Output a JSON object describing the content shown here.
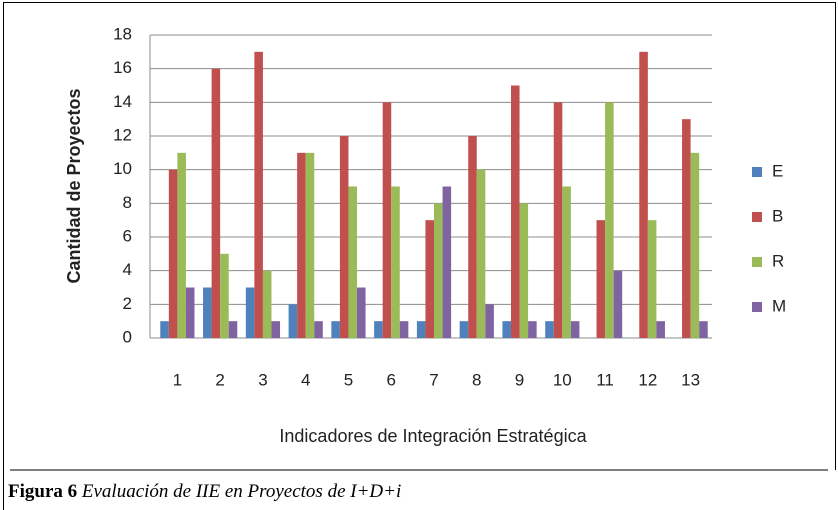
{
  "chart_data": {
    "type": "bar",
    "categories": [
      "1",
      "2",
      "3",
      "4",
      "5",
      "6",
      "7",
      "8",
      "9",
      "10",
      "11",
      "12",
      "13"
    ],
    "series": [
      {
        "name": "E",
        "color": "#4f81bd",
        "values": [
          1,
          3,
          3,
          2,
          1,
          1,
          1,
          1,
          1,
          1,
          0,
          0,
          0
        ]
      },
      {
        "name": "B",
        "color": "#c0504d",
        "values": [
          10,
          16,
          17,
          11,
          12,
          14,
          7,
          12,
          15,
          14,
          7,
          17,
          13
        ]
      },
      {
        "name": "R",
        "color": "#9bbb59",
        "values": [
          11,
          5,
          4,
          11,
          9,
          9,
          8,
          10,
          8,
          9,
          14,
          7,
          11
        ]
      },
      {
        "name": "M",
        "color": "#8064a2",
        "values": [
          3,
          1,
          1,
          1,
          3,
          1,
          9,
          2,
          1,
          1,
          4,
          1,
          1
        ]
      }
    ],
    "ylim": [
      0,
      18
    ],
    "yticks": [
      0,
      2,
      4,
      6,
      8,
      10,
      12,
      14,
      16,
      18
    ],
    "grid": true,
    "legend": "right",
    "y_label": "Cantidad de Proyectos",
    "x_label": "Indicadores de Integración Estratégica"
  },
  "caption": {
    "label": "Figura 6",
    "text": "Evaluación de IIE en Proyectos de I+D+i"
  }
}
